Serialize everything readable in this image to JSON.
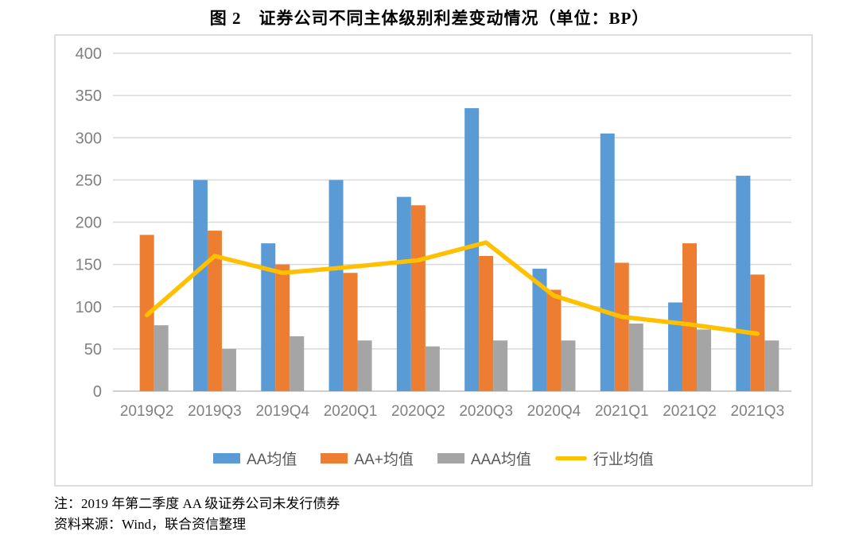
{
  "page": {
    "title": "图 2　证券公司不同主体级别利差变动情况（单位：BP）",
    "note_line1": "注：2019 年第二季度 AA 级证券公司未发行债券",
    "note_line2": "资料来源：Wind，联合资信整理"
  },
  "chart_data": {
    "type": "bar",
    "subtype": "grouped-bars-with-line-overlay",
    "title": "图 2　证券公司不同主体级别利差变动情况（单位：BP）",
    "categories": [
      "2019Q2",
      "2019Q3",
      "2019Q4",
      "2020Q1",
      "2020Q2",
      "2020Q3",
      "2020Q4",
      "2021Q1",
      "2021Q2",
      "2021Q3"
    ],
    "series": [
      {
        "name": "AA均值",
        "type": "bar",
        "color": "#5B9BD5",
        "values": [
          null,
          250,
          175,
          250,
          230,
          335,
          145,
          305,
          105,
          255
        ]
      },
      {
        "name": "AA+均值",
        "type": "bar",
        "color": "#ED7D31",
        "values": [
          185,
          190,
          150,
          140,
          220,
          160,
          120,
          152,
          175,
          138
        ]
      },
      {
        "name": "AAA均值",
        "type": "bar",
        "color": "#A5A5A5",
        "values": [
          78,
          50,
          65,
          60,
          53,
          60,
          60,
          80,
          73,
          60
        ]
      },
      {
        "name": "行业均值",
        "type": "line",
        "color": "#FFC000",
        "values": [
          90,
          160,
          140,
          147,
          155,
          176,
          113,
          88,
          79,
          68
        ]
      }
    ],
    "xlabel": "",
    "ylabel": "",
    "ylim": [
      0,
      400
    ],
    "ytick_step": 50,
    "grid": true,
    "legend_position": "bottom",
    "axis_label_color": "#808080",
    "legend_text_color": "#595959",
    "gridline_color": "#d9d9d9",
    "zero_line_color": "#bfbfbf",
    "unit": "BP"
  }
}
